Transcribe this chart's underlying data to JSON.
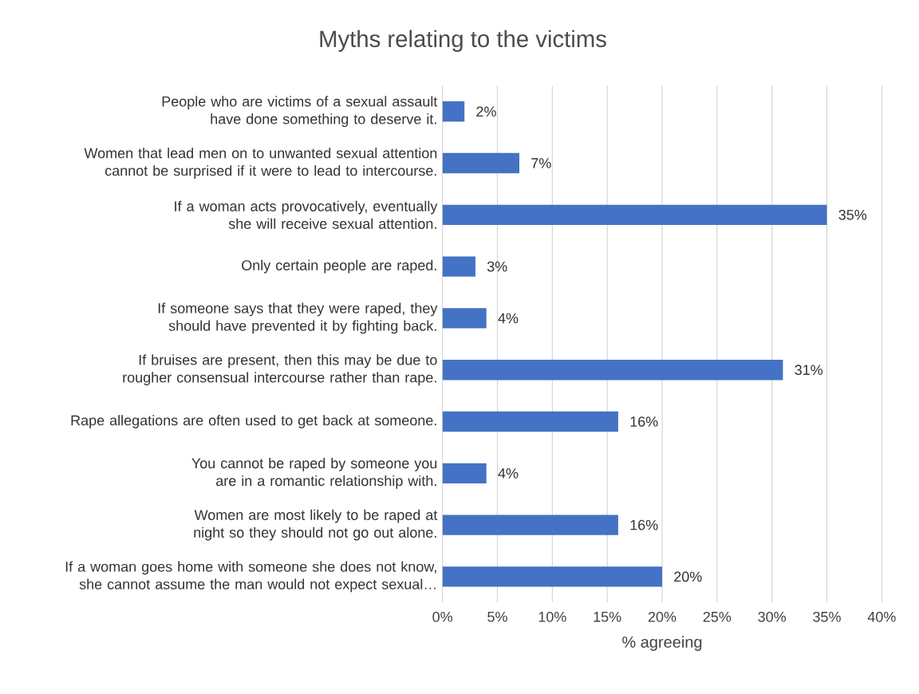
{
  "chart_data": {
    "type": "bar",
    "orientation": "horizontal",
    "title": "Myths relating to the victims",
    "xlabel": "% agreeing",
    "categories": [
      "People who are victims of a sexual assault have done something to deserve it.",
      "Women that lead men on to unwanted sexual attention cannot be surprised if it were to lead to intercourse.",
      "If a woman acts provocatively, eventually she will receive sexual attention.",
      "Only certain people are raped.",
      "If someone says that they were raped, they should have prevented it by fighting back.",
      "If bruises are present, then this may be due to rougher consensual intercourse rather than rape.",
      "Rape allegations are often used to get back at someone.",
      "You cannot be raped by someone you are in a romantic relationship with.",
      "Women are most likely to be raped at night so they should not go out alone.",
      "If a woman goes home with someone she does not know, she cannot assume the man would not expect sexual…"
    ],
    "values": [
      2,
      7,
      35,
      3,
      4,
      31,
      16,
      4,
      16,
      20
    ],
    "value_labels": [
      "2%",
      "7%",
      "35%",
      "3%",
      "4%",
      "31%",
      "16%",
      "4%",
      "16%",
      "20%"
    ],
    "color": "#4472c4",
    "xlim": [
      0,
      40
    ],
    "xticks": [
      {
        "value": 0,
        "label": "0%"
      },
      {
        "value": 5,
        "label": "5%"
      },
      {
        "value": 10,
        "label": "10%"
      },
      {
        "value": 15,
        "label": "15%"
      },
      {
        "value": 20,
        "label": "20%"
      },
      {
        "value": 25,
        "label": "25%"
      },
      {
        "value": 30,
        "label": "30%"
      },
      {
        "value": 35,
        "label": "35%"
      },
      {
        "value": 40,
        "label": "40%"
      }
    ],
    "grid": "x"
  }
}
